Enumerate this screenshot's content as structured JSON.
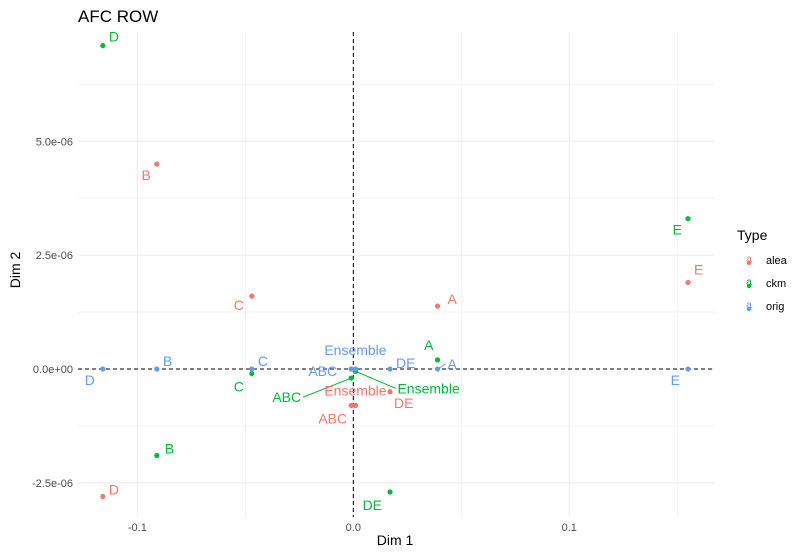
{
  "chart_data": {
    "type": "scatter",
    "title": "AFC ROW",
    "xlabel": "Dim 1",
    "ylabel": "Dim 2",
    "xlim": [
      -0.1275,
      0.1675
    ],
    "ylim": [
      -3.25e-06,
      7.4e-06
    ],
    "x_ticks": [
      -0.1,
      0.0,
      0.1
    ],
    "x_tick_labels": [
      "-0.1",
      "0.0",
      "0.1"
    ],
    "y_ticks": [
      -2.5e-06,
      0.0,
      2.5e-06,
      5e-06
    ],
    "y_tick_labels": [
      "-2.5e-06",
      "0.0e+00",
      "2.5e-06",
      "5.0e-06"
    ],
    "grid": true,
    "reference_lines": {
      "x": 0,
      "y": 0,
      "style": "dashed"
    },
    "legend": {
      "title": "Type",
      "position": "right"
    },
    "series": [
      {
        "name": "alea",
        "color": "#F8766D",
        "points": [
          {
            "label": "A",
            "x": 0.039,
            "y": 1.38e-06
          },
          {
            "label": "B",
            "x": -0.091,
            "y": 4.5e-06
          },
          {
            "label": "C",
            "x": -0.047,
            "y": 1.6e-06
          },
          {
            "label": "D",
            "x": -0.116,
            "y": -2.8e-06
          },
          {
            "label": "E",
            "x": 0.155,
            "y": 1.9e-06
          },
          {
            "label": "ABC",
            "x": -0.001,
            "y": -8e-07
          },
          {
            "label": "DE",
            "x": 0.017,
            "y": -5e-07
          },
          {
            "label": "Ensemble",
            "x": 0.001,
            "y": -8e-07
          }
        ]
      },
      {
        "name": "ckm",
        "color": "#00BA38",
        "points": [
          {
            "label": "A",
            "x": 0.039,
            "y": 2e-07
          },
          {
            "label": "B",
            "x": -0.091,
            "y": -1.9e-06
          },
          {
            "label": "C",
            "x": -0.047,
            "y": -1e-07
          },
          {
            "label": "D",
            "x": -0.116,
            "y": 7.1e-06
          },
          {
            "label": "E",
            "x": 0.155,
            "y": 3.3e-06
          },
          {
            "label": "ABC",
            "x": -0.001,
            "y": -2e-07
          },
          {
            "label": "DE",
            "x": 0.017,
            "y": -2.7e-06
          },
          {
            "label": "Ensemble",
            "x": 0.001,
            "y": -5e-08
          }
        ]
      },
      {
        "name": "orig",
        "color": "#619CFF",
        "points": [
          {
            "label": "A",
            "x": 0.039,
            "y": 0.0
          },
          {
            "label": "B",
            "x": -0.091,
            "y": 0.0
          },
          {
            "label": "C",
            "x": -0.047,
            "y": 0.0
          },
          {
            "label": "D",
            "x": -0.116,
            "y": 0.0
          },
          {
            "label": "E",
            "x": 0.155,
            "y": 0.0
          },
          {
            "label": "ABC",
            "x": -0.001,
            "y": 0.0
          },
          {
            "label": "DE",
            "x": 0.017,
            "y": 0.0
          },
          {
            "label": "Ensemble",
            "x": 0.001,
            "y": 0.0
          }
        ]
      }
    ]
  }
}
